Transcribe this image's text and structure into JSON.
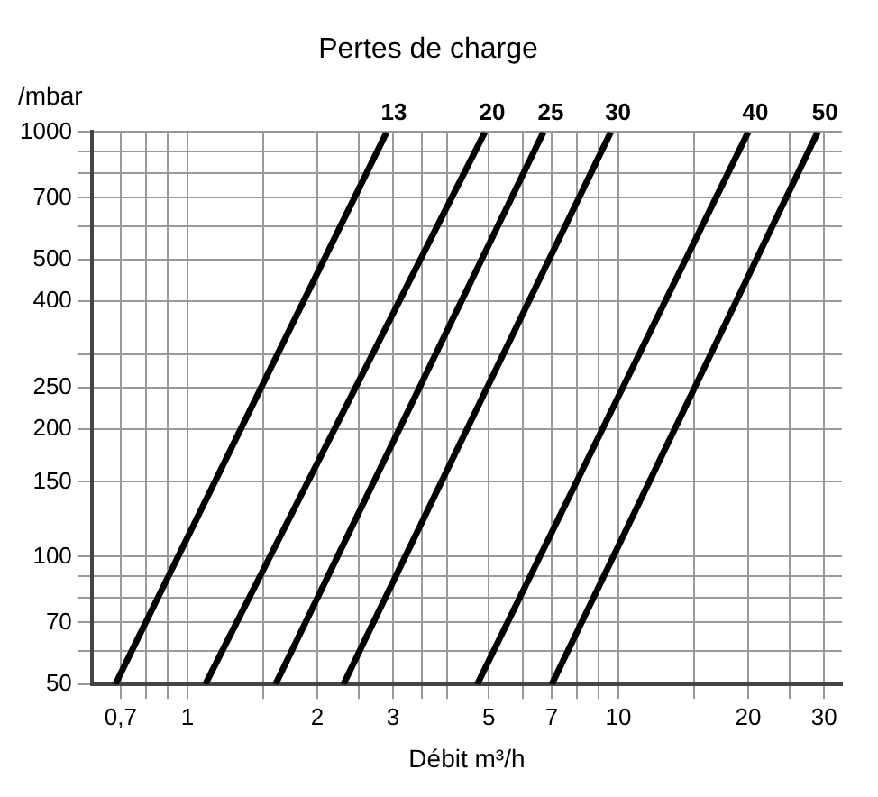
{
  "chart_data": {
    "type": "line",
    "title": "Pertes de charge",
    "xlabel": "Débit m³/h",
    "ylabel": "/mbar",
    "log": "xy",
    "grid": true,
    "legend": false,
    "marker": "none",
    "line_style": "solid",
    "xlim": [
      0.6,
      33
    ],
    "ylim": [
      50,
      1000
    ],
    "xticks": [
      {
        "value": 0.7,
        "label": "0,7"
      },
      {
        "value": 0.8,
        "label": null
      },
      {
        "value": 0.9,
        "label": null
      },
      1,
      {
        "value": 1.5,
        "label": null
      },
      2,
      {
        "value": 2.5,
        "label": null
      },
      3,
      {
        "value": 3.5,
        "label": null
      },
      {
        "value": 4,
        "label": null
      },
      5,
      {
        "value": 6,
        "label": null
      },
      7,
      {
        "value": 8,
        "label": null
      },
      {
        "value": 9,
        "label": null
      },
      10,
      {
        "value": 15,
        "label": null
      },
      20,
      {
        "value": 25,
        "label": null
      },
      30
    ],
    "yticks": [
      50,
      {
        "value": 60,
        "label": null
      },
      70,
      {
        "value": 80,
        "label": null
      },
      {
        "value": 90,
        "label": null
      },
      100,
      150,
      200,
      250,
      {
        "value": 300,
        "label": null
      },
      400,
      500,
      {
        "value": 600,
        "label": null
      },
      700,
      {
        "value": 800,
        "label": null
      },
      {
        "value": 900,
        "label": null
      },
      1000
    ],
    "series": [
      {
        "name": "13",
        "color": "#000000",
        "x": [
          0.68,
          2.9
        ],
        "values": [
          50,
          1000
        ]
      },
      {
        "name": "20",
        "color": "#000000",
        "x": [
          1.1,
          4.9
        ],
        "values": [
          50,
          1000
        ]
      },
      {
        "name": "25",
        "color": "#000000",
        "x": [
          1.6,
          6.7
        ],
        "values": [
          50,
          1000
        ]
      },
      {
        "name": "30",
        "color": "#000000",
        "x": [
          2.3,
          9.6
        ],
        "values": [
          50,
          1000
        ]
      },
      {
        "name": "40",
        "color": "#000000",
        "x": [
          4.7,
          20
        ],
        "values": [
          50,
          1000
        ]
      },
      {
        "name": "50",
        "color": "#000000",
        "x": [
          7,
          29
        ],
        "values": [
          50,
          1000
        ]
      }
    ]
  }
}
